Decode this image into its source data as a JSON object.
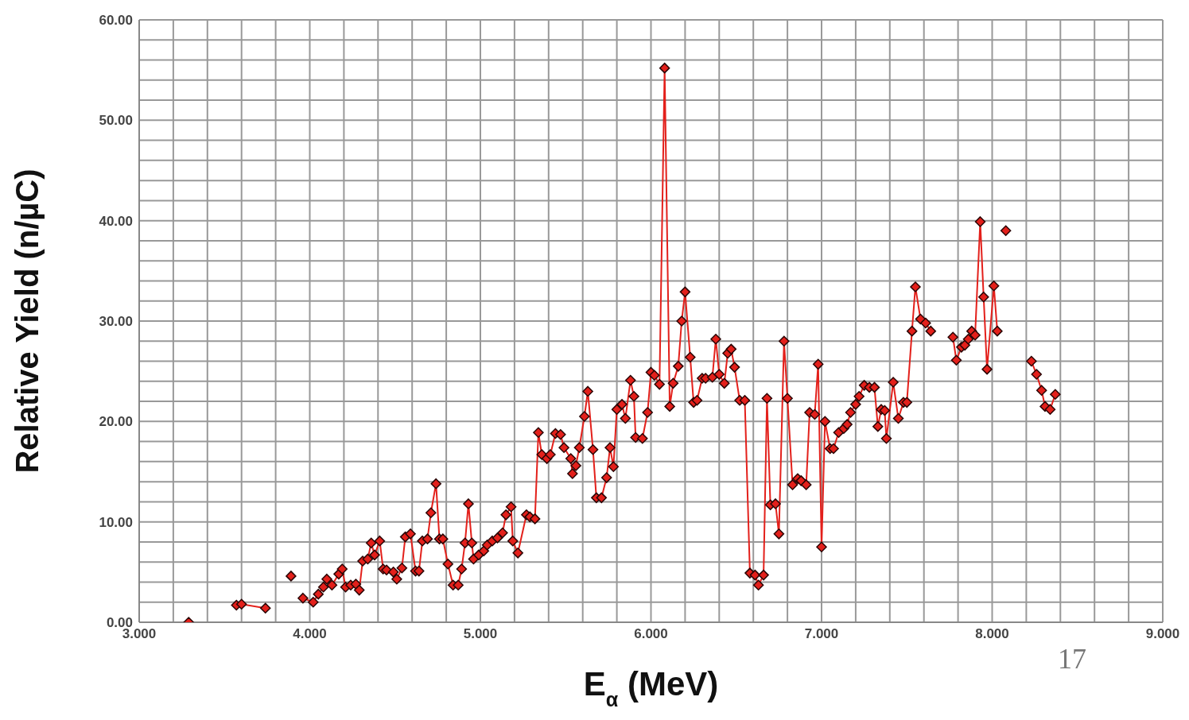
{
  "chart_data": {
    "type": "line",
    "xlabel": "E$_{α}$ (MeV)",
    "ylabel": "Relative Yield (n/µC)",
    "annotations": [
      "17"
    ],
    "xlim": [
      3,
      9
    ],
    "ylim": [
      0,
      60
    ],
    "xticks": [
      {
        "value": 3,
        "label": "3.000"
      },
      {
        "value": 3.2,
        "label": null
      },
      {
        "value": 3.4,
        "label": null
      },
      {
        "value": 3.6,
        "label": null
      },
      {
        "value": 3.8,
        "label": null
      },
      {
        "value": 4,
        "label": "4.000"
      },
      {
        "value": 4.2,
        "label": null
      },
      {
        "value": 4.4,
        "label": null
      },
      {
        "value": 4.6,
        "label": null
      },
      {
        "value": 4.8,
        "label": null
      },
      {
        "value": 5,
        "label": "5.000"
      },
      {
        "value": 5.2,
        "label": null
      },
      {
        "value": 5.4,
        "label": null
      },
      {
        "value": 5.6,
        "label": null
      },
      {
        "value": 5.8,
        "label": null
      },
      {
        "value": 6,
        "label": "6.000"
      },
      {
        "value": 6.2,
        "label": null
      },
      {
        "value": 6.4,
        "label": null
      },
      {
        "value": 6.6,
        "label": null
      },
      {
        "value": 6.8,
        "label": null
      },
      {
        "value": 7,
        "label": "7.000"
      },
      {
        "value": 7.2,
        "label": null
      },
      {
        "value": 7.4,
        "label": null
      },
      {
        "value": 7.6,
        "label": null
      },
      {
        "value": 7.8,
        "label": null
      },
      {
        "value": 8,
        "label": "8.000"
      },
      {
        "value": 8.2,
        "label": null
      },
      {
        "value": 8.4,
        "label": null
      },
      {
        "value": 8.6,
        "label": null
      },
      {
        "value": 8.8,
        "label": null
      },
      {
        "value": 9,
        "label": "9.000"
      }
    ],
    "yticks": [
      {
        "value": 0,
        "label": "0.00"
      },
      {
        "value": 2,
        "label": null
      },
      {
        "value": 4,
        "label": null
      },
      {
        "value": 6,
        "label": null
      },
      {
        "value": 8,
        "label": null
      },
      {
        "value": 10,
        "label": "10.00"
      },
      {
        "value": 12,
        "label": null
      },
      {
        "value": 14,
        "label": null
      },
      {
        "value": 16,
        "label": null
      },
      {
        "value": 18,
        "label": null
      },
      {
        "value": 20,
        "label": "20.00"
      },
      {
        "value": 22,
        "label": null
      },
      {
        "value": 24,
        "label": null
      },
      {
        "value": 26,
        "label": null
      },
      {
        "value": 28,
        "label": null
      },
      {
        "value": 30,
        "label": "30.00"
      },
      {
        "value": 32,
        "label": null
      },
      {
        "value": 34,
        "label": null
      },
      {
        "value": 36,
        "label": null
      },
      {
        "value": 38,
        "label": null
      },
      {
        "value": 40,
        "label": "40.00"
      },
      {
        "value": 42,
        "label": null
      },
      {
        "value": 44,
        "label": null
      },
      {
        "value": 46,
        "label": null
      },
      {
        "value": 48,
        "label": null
      },
      {
        "value": 50,
        "label": "50.00"
      },
      {
        "value": 52,
        "label": null
      },
      {
        "value": 54,
        "label": null
      },
      {
        "value": 56,
        "label": null
      },
      {
        "value": 58,
        "label": null
      },
      {
        "value": 60,
        "label": "60.00"
      }
    ],
    "grid": true,
    "marker": "diamond",
    "line_style": "solid",
    "series": [
      {
        "color": "#e3201b",
        "x": [
          3.29,
          3.45,
          3.57,
          3.6,
          3.74,
          3.82,
          3.89,
          3.93,
          3.96,
          4.02,
          4.05,
          4.08,
          4.1,
          4.13,
          4.17,
          4.19,
          4.21,
          4.24,
          4.27,
          4.29,
          4.31,
          4.34,
          4.36,
          4.38,
          4.41,
          4.43,
          4.45,
          4.49,
          4.51,
          4.54,
          4.56,
          4.59,
          4.62,
          4.64,
          4.66,
          4.69,
          4.71,
          4.74,
          4.76,
          4.78,
          4.81,
          4.84,
          4.87,
          4.89,
          4.91,
          4.93,
          4.95,
          4.96,
          4.99,
          5.02,
          5.04,
          5.07,
          5.1,
          5.13,
          5.15,
          5.18,
          5.19,
          5.22,
          5.27,
          5.29,
          5.32,
          5.34,
          5.36,
          5.39,
          5.41,
          5.44,
          5.47,
          5.49,
          5.53,
          5.54,
          5.56,
          5.58,
          5.61,
          5.63,
          5.66,
          5.68,
          5.71,
          5.74,
          5.76,
          5.78,
          5.8,
          5.83,
          5.85,
          5.88,
          5.9,
          5.91,
          5.95,
          5.98,
          6.0,
          6.02,
          6.05,
          6.08,
          6.11,
          6.13,
          6.16,
          6.18,
          6.2,
          6.23,
          6.25,
          6.27,
          6.3,
          6.32,
          6.36,
          6.38,
          6.4,
          6.43,
          6.45,
          6.47,
          6.49,
          6.52,
          6.55,
          6.58,
          6.61,
          6.63,
          6.66,
          6.68,
          6.7,
          6.73,
          6.75,
          6.78,
          6.8,
          6.83,
          6.86,
          6.88,
          6.91,
          6.93,
          6.96,
          6.98,
          7.0,
          7.02,
          7.05,
          7.07,
          7.1,
          7.13,
          7.15,
          7.17,
          7.2,
          7.22,
          7.25,
          7.28,
          7.31,
          7.33,
          7.35,
          7.37,
          7.38,
          7.42,
          7.45,
          7.48,
          7.5,
          7.53,
          7.55,
          7.58,
          7.61,
          7.64,
          7.7,
          7.77,
          7.79,
          7.82,
          7.84,
          7.86,
          7.88,
          7.9,
          7.93,
          7.95,
          7.97,
          8.01,
          8.03,
          8.06,
          8.08,
          8.15,
          8.23,
          8.26,
          8.29,
          8.31,
          8.34,
          8.37
        ],
        "values": [
          0,
          null,
          1.7,
          1.8,
          1.4,
          null,
          4.6,
          null,
          2.4,
          2.0,
          2.8,
          3.5,
          4.3,
          3.7,
          4.8,
          5.3,
          3.5,
          3.7,
          3.8,
          3.2,
          6.1,
          6.3,
          7.9,
          6.7,
          8.1,
          5.3,
          5.2,
          5.0,
          4.3,
          5.4,
          8.5,
          8.8,
          5.1,
          5.1,
          8.1,
          8.3,
          10.9,
          13.8,
          8.3,
          8.3,
          5.8,
          3.7,
          3.7,
          5.3,
          7.9,
          11.8,
          7.9,
          6.3,
          6.7,
          7.1,
          7.7,
          8.1,
          8.4,
          8.9,
          10.7,
          11.5,
          8.1,
          6.9,
          10.7,
          10.5,
          10.3,
          18.9,
          16.7,
          16.3,
          16.7,
          18.8,
          18.7,
          17.4,
          16.3,
          14.8,
          15.6,
          17.4,
          20.5,
          23.0,
          17.2,
          12.4,
          12.4,
          14.4,
          17.4,
          15.5,
          21.2,
          21.7,
          20.3,
          24.1,
          22.5,
          18.4,
          18.3,
          20.9,
          24.9,
          24.6,
          23.7,
          55.2,
          21.5,
          23.8,
          25.5,
          30.0,
          32.9,
          26.4,
          21.9,
          22.1,
          24.3,
          24.3,
          24.4,
          28.2,
          24.7,
          23.8,
          26.8,
          27.2,
          25.4,
          22.1,
          22.1,
          4.9,
          4.7,
          3.7,
          4.7,
          22.3,
          11.7,
          11.8,
          8.8,
          28.0,
          22.3,
          13.7,
          14.3,
          14.1,
          13.7,
          20.9,
          20.7,
          25.7,
          7.5,
          20.0,
          17.3,
          17.3,
          18.9,
          19.3,
          19.7,
          20.9,
          21.7,
          22.5,
          23.6,
          23.4,
          23.4,
          19.5,
          21.2,
          21.1,
          18.3,
          23.9,
          20.3,
          21.9,
          21.9,
          29.0,
          33.4,
          30.2,
          29.8,
          29.0,
          null,
          28.4,
          26.1,
          27.4,
          27.6,
          28.2,
          29.0,
          28.6,
          39.9,
          32.4,
          25.2,
          33.5,
          29.0,
          null,
          39.0,
          null,
          26.0,
          24.7,
          23.1,
          21.5,
          21.2,
          22.7
        ]
      }
    ]
  }
}
